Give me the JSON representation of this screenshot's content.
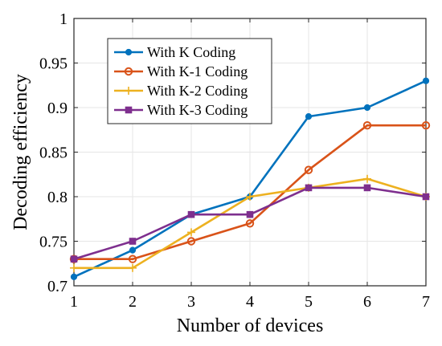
{
  "chart_data": {
    "type": "line",
    "xlabel": "Number of devices",
    "ylabel": "Decoding efficiency",
    "x": [
      1,
      2,
      3,
      4,
      5,
      6,
      7
    ],
    "xlim": [
      1,
      7
    ],
    "ylim": [
      0.7,
      1
    ],
    "xticks": [
      1,
      2,
      3,
      4,
      5,
      6,
      7
    ],
    "yticks": [
      0.7,
      0.75,
      0.8,
      0.85,
      0.9,
      0.95,
      1
    ],
    "ytick_labels": [
      "0.7",
      "0.75",
      "0.8",
      "0.85",
      "0.9",
      "0.95",
      "1"
    ],
    "grid": true,
    "legend_position": "top-left",
    "series": [
      {
        "name": "With K Coding",
        "color": "#0072BD",
        "marker": "circle",
        "values": [
          0.71,
          0.74,
          0.78,
          0.8,
          0.89,
          0.9,
          0.93
        ]
      },
      {
        "name": "With K-1 Coding",
        "color": "#D95319",
        "marker": "open-circle",
        "values": [
          0.73,
          0.73,
          0.75,
          0.77,
          0.83,
          0.88,
          0.88
        ]
      },
      {
        "name": "With K-2 Coding",
        "color": "#EDB120",
        "marker": "plus",
        "values": [
          0.72,
          0.72,
          0.76,
          0.8,
          0.81,
          0.82,
          0.8
        ]
      },
      {
        "name": "With K-3 Coding",
        "color": "#7E2F8E",
        "marker": "square",
        "values": [
          0.73,
          0.75,
          0.78,
          0.78,
          0.81,
          0.81,
          0.8
        ]
      }
    ]
  }
}
